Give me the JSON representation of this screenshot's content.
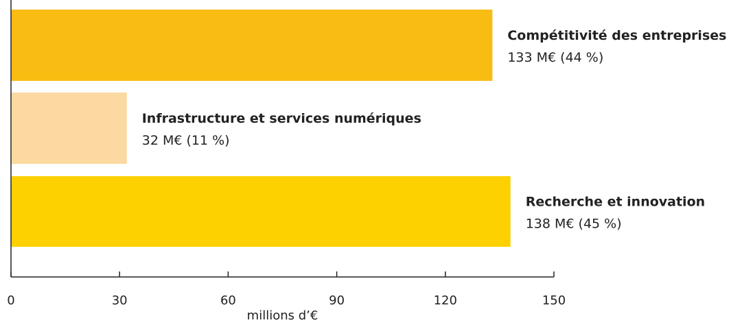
{
  "chart_data": {
    "type": "bar",
    "orientation": "horizontal",
    "categories": [
      "Compétitivité des entreprises",
      "Infrastructure et services numériques",
      "Recherche et innovation"
    ],
    "values": [
      133,
      32,
      138
    ],
    "value_labels": [
      "133 M€ (44 %)",
      "32 M€ (11 %)",
      "138 M€ (45 %)"
    ],
    "colors": [
      "#f8bc12",
      "#fcd9a0",
      "#fdd000"
    ],
    "xlabel": "millions d’€",
    "xlim": [
      0,
      150
    ],
    "xticks": [
      0,
      30,
      60,
      90,
      120,
      150
    ],
    "grid": false,
    "legend": "none"
  }
}
